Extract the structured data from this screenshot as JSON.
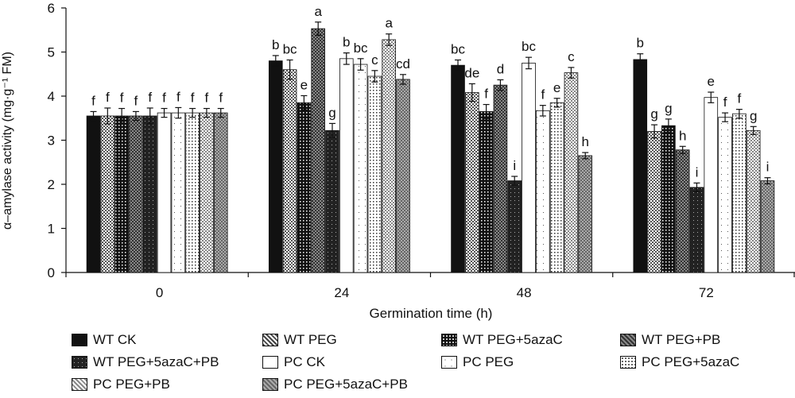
{
  "chart_data": {
    "type": "bar",
    "xlabel": "Germination time (h)",
    "ylabel": "α–amylase activity (mg·g⁻¹ FM)",
    "ylim": [
      0,
      6
    ],
    "yticks": [
      "0",
      "1",
      "2",
      "3",
      "4",
      "5",
      "6"
    ],
    "categories": [
      "0",
      "24",
      "48",
      "72"
    ],
    "series": [
      {
        "name": "WT CK",
        "values": [
          3.55,
          4.8,
          4.7,
          4.83
        ],
        "errors": [
          0.1,
          0.12,
          0.12,
          0.13
        ],
        "letters": [
          "f",
          "b",
          "bc",
          "b"
        ]
      },
      {
        "name": "WT PEG",
        "values": [
          3.55,
          4.6,
          4.08,
          3.2
        ],
        "errors": [
          0.18,
          0.22,
          0.2,
          0.15
        ],
        "letters": [
          "f",
          "bc",
          "de",
          "g"
        ]
      },
      {
        "name": "WT PEG+5azaC",
        "values": [
          3.55,
          3.85,
          3.65,
          3.33
        ],
        "errors": [
          0.17,
          0.16,
          0.16,
          0.15
        ],
        "letters": [
          "f",
          "e",
          "f",
          "g"
        ]
      },
      {
        "name": "WT PEG+PB",
        "values": [
          3.55,
          5.53,
          4.25,
          2.78
        ],
        "errors": [
          0.1,
          0.15,
          0.12,
          0.08
        ],
        "letters": [
          "f",
          "a",
          "d",
          "h"
        ]
      },
      {
        "name": "WT PEG+5azaC+PB",
        "values": [
          3.55,
          3.22,
          2.08,
          1.93
        ],
        "errors": [
          0.18,
          0.16,
          0.1,
          0.1
        ],
        "letters": [
          "f",
          "g",
          "i",
          "i"
        ]
      },
      {
        "name": "PC CK",
        "values": [
          3.62,
          4.85,
          4.75,
          3.97
        ],
        "errors": [
          0.1,
          0.13,
          0.13,
          0.12
        ],
        "letters": [
          "f",
          "b",
          "bc",
          "e"
        ]
      },
      {
        "name": "PC PEG",
        "values": [
          3.62,
          4.72,
          3.67,
          3.52
        ],
        "errors": [
          0.12,
          0.13,
          0.12,
          0.1
        ],
        "letters": [
          "f",
          "bc",
          "f",
          "f"
        ]
      },
      {
        "name": "PC PEG+5azaC",
        "values": [
          3.62,
          4.45,
          3.85,
          3.6
        ],
        "errors": [
          0.1,
          0.13,
          0.1,
          0.1
        ],
        "letters": [
          "f",
          "c",
          "e",
          "f"
        ]
      },
      {
        "name": "PC PEG+PB",
        "values": [
          3.62,
          5.28,
          4.53,
          3.22
        ],
        "errors": [
          0.1,
          0.13,
          0.12,
          0.09
        ],
        "letters": [
          "f",
          "a",
          "c",
          "g"
        ]
      },
      {
        "name": "PC PEG+5azaC+PB",
        "values": [
          3.62,
          4.38,
          2.65,
          2.08
        ],
        "errors": [
          0.1,
          0.11,
          0.07,
          0.07
        ],
        "letters": [
          "f",
          "cd",
          "h",
          "i"
        ]
      }
    ],
    "legend_placement": "bottom",
    "grid": false
  },
  "colors": {
    "wt_ck": "#111111",
    "wt_peg": "#777777",
    "wt_peg_5azac": "#111111",
    "wt_peg_pb": "#666666",
    "wt_peg_5azac_pb": "#222222",
    "pc_ck": "#ffffff",
    "pc_peg": "#ffffff",
    "pc_peg_5azac": "#ffffff",
    "pc_peg_pb": "#ffffff",
    "pc_peg_5azac_pb": "#cccccc"
  }
}
